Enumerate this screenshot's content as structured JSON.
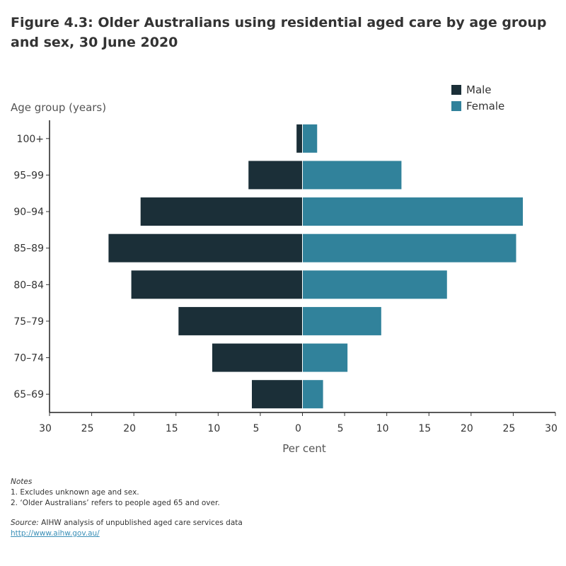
{
  "title": "Figure 4.3: Older Australians using residential aged care by age group and sex, 30 June 2020",
  "chart_data": {
    "type": "bar",
    "orientation": "horizontal-population-pyramid",
    "ylabel": "Age group (years)",
    "xlabel": "Per cent",
    "categories": [
      "100+",
      "95–99",
      "90–94",
      "85–89",
      "80–84",
      "75–79",
      "70–74",
      "65–69"
    ],
    "series": [
      {
        "name": "Male",
        "color": "#1b2f38",
        "values": [
          0.7,
          6.4,
          19.2,
          23.0,
          20.3,
          14.7,
          10.7,
          6.0
        ]
      },
      {
        "name": "Female",
        "color": "#31829b",
        "values": [
          1.7,
          11.7,
          26.1,
          25.3,
          17.1,
          9.3,
          5.3,
          2.4
        ]
      }
    ],
    "xlim": [
      -30,
      30
    ],
    "xticks": [
      -30,
      -25,
      -20,
      -15,
      -10,
      -5,
      0,
      5,
      10,
      15,
      20,
      25,
      30
    ],
    "xtick_labels": [
      "30",
      "25",
      "20",
      "15",
      "10",
      "5",
      "0",
      "5",
      "10",
      "15",
      "20",
      "25",
      "30"
    ],
    "legend_position": "top-right",
    "grid": false
  },
  "notes": {
    "heading": "Notes",
    "items": [
      "1. Excludes unknown age and sex.",
      "2. ‘Older Australians’ refers to people aged 65 and over."
    ],
    "source_label": "Source:",
    "source_text": " AIHW analysis of unpublished aged care services data",
    "link": "http://www.aihw.gov.au/"
  }
}
